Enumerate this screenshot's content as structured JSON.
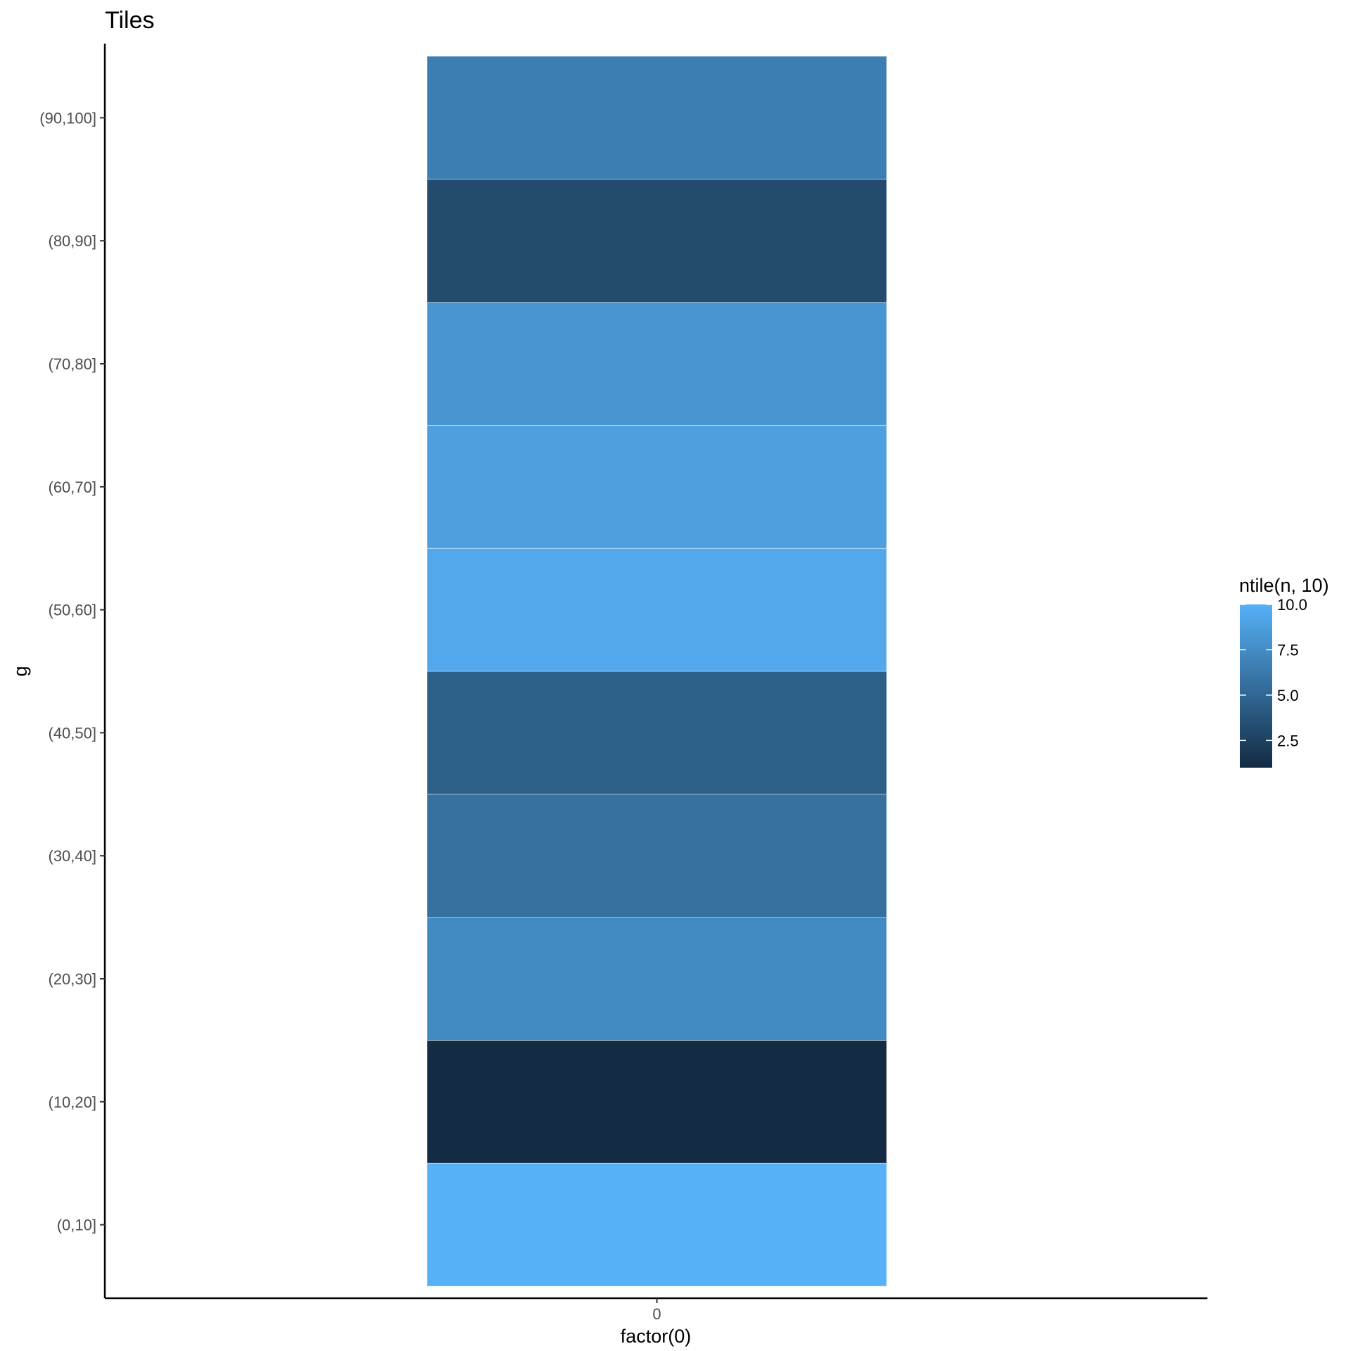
{
  "chart_data": {
    "type": "heatmap",
    "title": "Tiles",
    "xlabel": "factor(0)",
    "ylabel": "g",
    "x_categories": [
      "0"
    ],
    "y_categories": [
      "(0,10]",
      "(10,20]",
      "(20,30]",
      "(30,40]",
      "(40,50]",
      "(50,60]",
      "(60,70]",
      "(70,80]",
      "(80,90]",
      "(90,100]"
    ],
    "values": [
      10,
      1,
      6,
      4,
      3,
      9,
      8,
      7,
      2,
      5
    ],
    "legend": {
      "title": "ntile(n, 10)",
      "ticks": [
        "2.5",
        "5.0",
        "7.5",
        "10.0"
      ],
      "tick_values": [
        2.5,
        5.0,
        7.5,
        10.0
      ],
      "range": [
        1,
        10
      ],
      "low_color": "#132B43",
      "high_color": "#56B1F7",
      "position": "right"
    },
    "grid": false,
    "tile_border_color": "#ffffff"
  }
}
